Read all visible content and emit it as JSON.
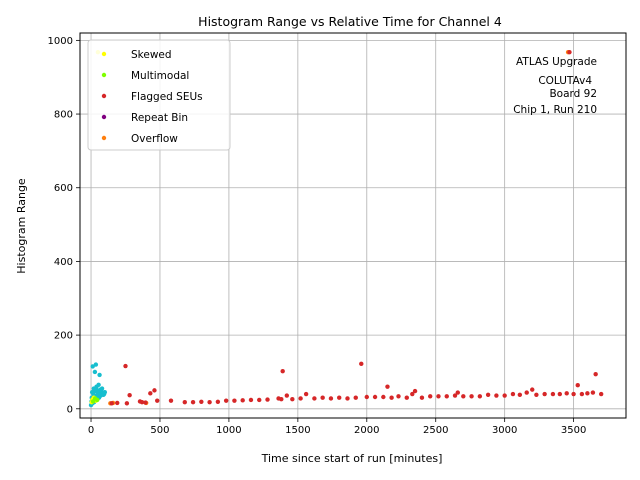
{
  "chart_data": {
    "type": "scatter",
    "title": "Histogram Range vs Relative Time for Channel 4",
    "xlabel": "Time since start of run [minutes]",
    "ylabel": "Histogram Range",
    "xlim": [
      -80,
      3880
    ],
    "ylim": [
      -25,
      1020
    ],
    "xticks": [
      0,
      500,
      1000,
      1500,
      2000,
      2500,
      3000,
      3500
    ],
    "yticks": [
      0,
      200,
      400,
      600,
      800,
      1000
    ],
    "grid": true,
    "legend_position": "top-left",
    "annotation": [
      "ATLAS Upgrade",
      "COLUTAv4",
      "Board 92",
      "Chip 1, Run 210"
    ],
    "series": [
      {
        "name": "Skewed",
        "color": "#ffff00",
        "points": [
          [
            5,
            18
          ],
          [
            10,
            25
          ],
          [
            20,
            30
          ],
          [
            35,
            22
          ],
          [
            50,
            968
          ]
        ]
      },
      {
        "name": "Multimodal",
        "color": "#7fff00",
        "points": [
          [
            15,
            20
          ],
          [
            30,
            28
          ],
          [
            45,
            24
          ]
        ]
      },
      {
        "name": "Flagged SEUs",
        "color": "#d62728",
        "points": [
          [
            150,
            15
          ],
          [
            190,
            16
          ],
          [
            250,
            116
          ],
          [
            260,
            15
          ],
          [
            280,
            37
          ],
          [
            355,
            20
          ],
          [
            370,
            18
          ],
          [
            395,
            17
          ],
          [
            430,
            42
          ],
          [
            460,
            50
          ],
          [
            480,
            22
          ],
          [
            580,
            22
          ],
          [
            680,
            18
          ],
          [
            740,
            18
          ],
          [
            800,
            19
          ],
          [
            860,
            18
          ],
          [
            920,
            19
          ],
          [
            980,
            22
          ],
          [
            1040,
            22
          ],
          [
            1100,
            23
          ],
          [
            1160,
            24
          ],
          [
            1220,
            24
          ],
          [
            1280,
            25
          ],
          [
            1360,
            28
          ],
          [
            1380,
            26
          ],
          [
            1390,
            102
          ],
          [
            1420,
            36
          ],
          [
            1460,
            26
          ],
          [
            1520,
            28
          ],
          [
            1560,
            40
          ],
          [
            1620,
            28
          ],
          [
            1680,
            30
          ],
          [
            1740,
            28
          ],
          [
            1800,
            30
          ],
          [
            1860,
            28
          ],
          [
            1920,
            30
          ],
          [
            1960,
            122
          ],
          [
            2000,
            32
          ],
          [
            2060,
            32
          ],
          [
            2120,
            32
          ],
          [
            2150,
            60
          ],
          [
            2180,
            30
          ],
          [
            2230,
            34
          ],
          [
            2290,
            30
          ],
          [
            2330,
            40
          ],
          [
            2350,
            48
          ],
          [
            2400,
            30
          ],
          [
            2460,
            34
          ],
          [
            2520,
            34
          ],
          [
            2580,
            34
          ],
          [
            2640,
            36
          ],
          [
            2660,
            44
          ],
          [
            2700,
            34
          ],
          [
            2760,
            34
          ],
          [
            2820,
            34
          ],
          [
            2880,
            38
          ],
          [
            2940,
            36
          ],
          [
            3000,
            36
          ],
          [
            3060,
            40
          ],
          [
            3110,
            38
          ],
          [
            3160,
            44
          ],
          [
            3200,
            52
          ],
          [
            3230,
            38
          ],
          [
            3290,
            40
          ],
          [
            3350,
            40
          ],
          [
            3400,
            40
          ],
          [
            3450,
            42
          ],
          [
            3470,
            968
          ],
          [
            3500,
            40
          ],
          [
            3530,
            64
          ],
          [
            3560,
            40
          ],
          [
            3600,
            42
          ],
          [
            3640,
            44
          ],
          [
            3660,
            94
          ],
          [
            3700,
            40
          ]
        ]
      },
      {
        "name": "Repeat Bin",
        "color": "#800080",
        "points": []
      },
      {
        "name": "Overflow",
        "color": "#ff7f0e",
        "points": [
          [
            140,
            15
          ],
          [
            160,
            16
          ],
          [
            400,
            16
          ],
          [
            3460,
            968
          ]
        ]
      },
      {
        "name": "",
        "color": "#17becf",
        "points": [
          [
            0,
            10
          ],
          [
            3,
            20
          ],
          [
            5,
            30
          ],
          [
            8,
            45
          ],
          [
            10,
            15
          ],
          [
            12,
            115
          ],
          [
            15,
            25
          ],
          [
            18,
            40
          ],
          [
            20,
            55
          ],
          [
            22,
            18
          ],
          [
            25,
            35
          ],
          [
            28,
            100
          ],
          [
            30,
            22
          ],
          [
            32,
            48
          ],
          [
            35,
            120
          ],
          [
            38,
            30
          ],
          [
            40,
            60
          ],
          [
            42,
            28
          ],
          [
            45,
            50
          ],
          [
            48,
            38
          ],
          [
            50,
            35
          ],
          [
            52,
            42
          ],
          [
            55,
            65
          ],
          [
            58,
            30
          ],
          [
            60,
            45
          ],
          [
            62,
            92
          ],
          [
            65,
            40
          ],
          [
            68,
            52
          ],
          [
            70,
            36
          ],
          [
            72,
            48
          ],
          [
            75,
            44
          ],
          [
            78,
            40
          ],
          [
            80,
            55
          ],
          [
            85,
            42
          ],
          [
            90,
            38
          ],
          [
            95,
            40
          ],
          [
            100,
            45
          ]
        ]
      }
    ]
  }
}
